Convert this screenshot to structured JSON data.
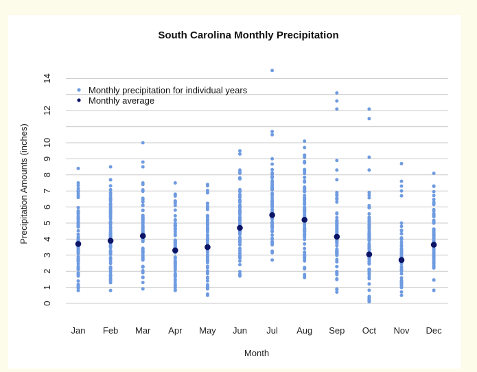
{
  "colors": {
    "page_background": "#fdfbe9",
    "individual_points": "#6f9be0",
    "average_points": "#0c1466",
    "gridline": "#c8c8c8"
  },
  "chart_data": {
    "type": "scatter",
    "title": "South Carolina Monthly Precipitation",
    "xlabel": "Month",
    "ylabel": "Precipitation Amounts (inches)",
    "ylim": [
      0,
      14.5
    ],
    "y_ticks": [
      0,
      1,
      2,
      3,
      4,
      5,
      6,
      7,
      8,
      9,
      10,
      12,
      14
    ],
    "y_tick_rotation_deg": -90,
    "grid": "horizontal",
    "legend_position": "top-left",
    "categories": [
      "Jan",
      "Feb",
      "Mar",
      "Apr",
      "May",
      "Jun",
      "Jul",
      "Aug",
      "Sep",
      "Oct",
      "Nov",
      "Dec"
    ],
    "series": [
      {
        "name": "Monthly precipitation for individual years",
        "color": "#6f9be0",
        "dense_ranges": [
          [
            0.8,
            7.5
          ],
          [
            0.8,
            7.7
          ],
          [
            0.9,
            7.5
          ],
          [
            0.8,
            6.8
          ],
          [
            0.5,
            7.4
          ],
          [
            1.7,
            8.3
          ],
          [
            2.7,
            9.0
          ],
          [
            1.6,
            9.7
          ],
          [
            0.7,
            6.9
          ],
          [
            0.1,
            6.9
          ],
          [
            0.5,
            5.0
          ],
          [
            0.8,
            7.3
          ]
        ],
        "outliers": [
          [
            8.4
          ],
          [
            8.5
          ],
          [
            8.8,
            8.5,
            10.0
          ],
          [
            7.5
          ],
          [
            7.4
          ],
          [
            9.3,
            9.5
          ],
          [
            10.5,
            10.7,
            14.5
          ],
          [
            10.1
          ],
          [
            7.7,
            8.3,
            8.9,
            12.1,
            12.6,
            13.1
          ],
          [
            8.3,
            9.1,
            11.5,
            12.1
          ],
          [
            6.7,
            7.0,
            7.3,
            7.6,
            8.7
          ],
          [
            7.3,
            8.1
          ]
        ]
      },
      {
        "name": "Monthly average",
        "color": "#0c1466",
        "values": [
          3.7,
          3.9,
          4.2,
          3.3,
          3.5,
          4.7,
          5.5,
          5.2,
          4.15,
          3.05,
          2.7,
          3.65
        ]
      }
    ]
  }
}
